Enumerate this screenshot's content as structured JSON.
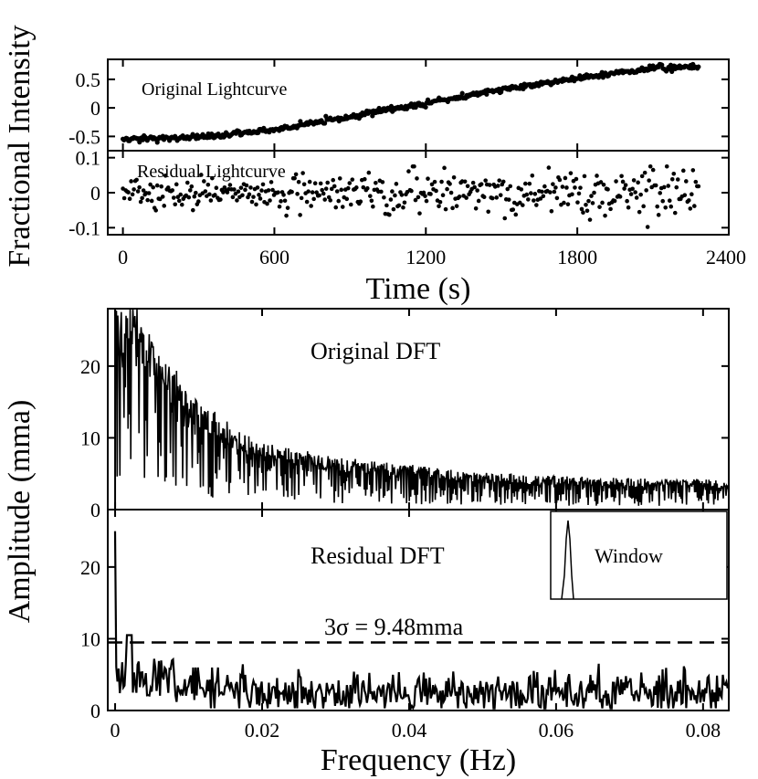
{
  "chart_data": [
    {
      "type": "scatter",
      "id": "original-lightcurve",
      "annotation": "Original Lightcurve",
      "xlim": [
        -60,
        2400
      ],
      "ylim": [
        -0.75,
        0.85
      ],
      "yticks": [
        0.5,
        0,
        -0.5
      ],
      "ytick_labels": [
        "0.5",
        "0",
        "-0.5"
      ],
      "trend": {
        "x": [
          0,
          300,
          600,
          900,
          1200,
          1500,
          1800,
          2100,
          2280
        ],
        "y": [
          -0.55,
          -0.52,
          -0.38,
          -0.15,
          0.08,
          0.32,
          0.52,
          0.7,
          0.72
        ]
      },
      "n_points": 520,
      "noise_sd": 0.025
    },
    {
      "type": "scatter",
      "id": "residual-lightcurve",
      "annotation": "Residual Lightcurve",
      "xlim": [
        -60,
        2400
      ],
      "ylim": [
        -0.12,
        0.12
      ],
      "yticks": [
        0.1,
        0,
        -0.1
      ],
      "ytick_labels": [
        "0.1",
        "0",
        "-0.1"
      ],
      "n_points": 420,
      "noise_sd": 0.028,
      "x_ticks": [
        0,
        600,
        1200,
        1800,
        2400
      ],
      "x_tick_labels": [
        "0",
        "600",
        "1200",
        "1800",
        "2400"
      ],
      "xlabel": "Time (s)",
      "shared_ylabel": "Fractional Intensity"
    },
    {
      "type": "line",
      "id": "original-dft",
      "annotation": "Original DFT",
      "xlim": [
        -0.001,
        0.0835
      ],
      "ylim": [
        0,
        28
      ],
      "yticks": [
        0,
        10,
        20
      ],
      "ytick_labels": [
        "0",
        "10",
        "20"
      ],
      "envelope": {
        "x": [
          0,
          0.001,
          0.003,
          0.006,
          0.01,
          0.015,
          0.02,
          0.03,
          0.04,
          0.05,
          0.06,
          0.07,
          0.0835
        ],
        "y": [
          28,
          28,
          28,
          22,
          16,
          12,
          9,
          7,
          6,
          5,
          4.5,
          4.2,
          4
        ]
      }
    },
    {
      "type": "line",
      "id": "residual-dft",
      "annotation": "Residual DFT",
      "xlim": [
        -0.001,
        0.0835
      ],
      "ylim": [
        0,
        28
      ],
      "yticks": [
        0,
        10,
        20
      ],
      "ytick_labels": [
        "0",
        "10",
        "20"
      ],
      "threshold": {
        "value": 9.48,
        "label": "3σ = 9.48mma"
      },
      "spike_start": 25,
      "peak": {
        "x": 0.0019,
        "y": 10.5
      },
      "mean_level": 2.6,
      "inset_label": "Window",
      "x_ticks": [
        0,
        0.02,
        0.04,
        0.06,
        0.08
      ],
      "x_tick_labels": [
        "0",
        "0.02",
        "0.04",
        "0.06",
        "0.08"
      ],
      "xlabel": "Frequency (Hz)",
      "shared_ylabel": "Amplitude (mma)"
    }
  ]
}
